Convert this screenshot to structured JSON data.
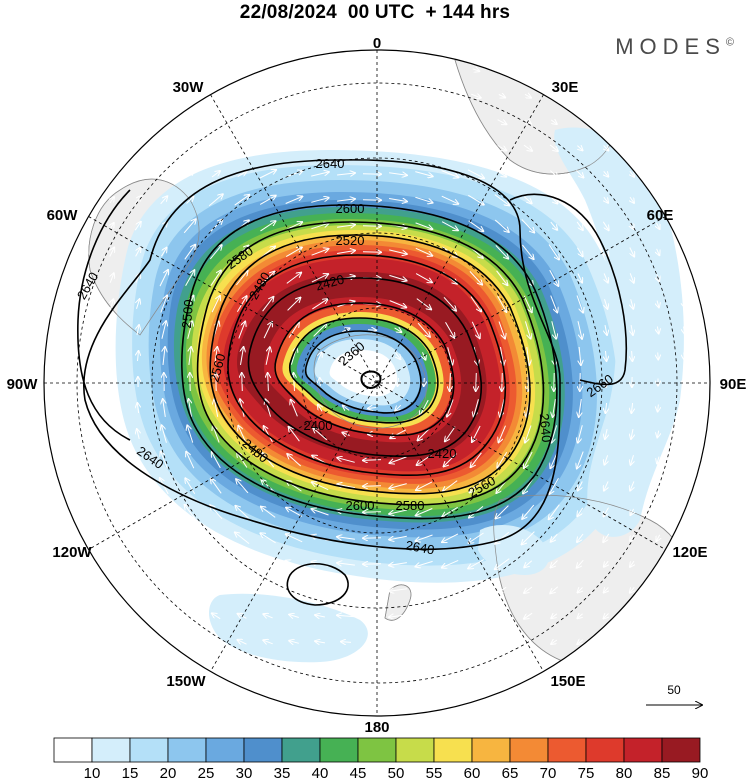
{
  "title": "22/08/2024  00 UTC  + 144 hrs",
  "brand": "MODES",
  "brand_mark": "©",
  "longitude_labels": [
    "0",
    "30E",
    "60E",
    "90E",
    "120E",
    "150E",
    "180",
    "150W",
    "120W",
    "90W",
    "60W",
    "30W"
  ],
  "contour_labels": [
    "2640",
    "2640",
    "2640",
    "2640",
    "2600",
    "2600",
    "2580",
    "2580",
    "2560",
    "2560",
    "2520",
    "2500",
    "2480",
    "2480",
    "2420",
    "2420",
    "2400",
    "2360",
    "2660",
    "2640"
  ],
  "colorbar": {
    "ticks": [
      "10",
      "15",
      "20",
      "25",
      "30",
      "35",
      "40",
      "45",
      "50",
      "55",
      "60",
      "65",
      "70",
      "75",
      "80",
      "85",
      "90"
    ],
    "colors": [
      "#ffffff",
      "#d4eefb",
      "#b4e0f8",
      "#8dc6ee",
      "#6aa9e0",
      "#4f8fcc",
      "#41a08d",
      "#46b154",
      "#7ec442",
      "#c7dc4a",
      "#f7e04f",
      "#f7b540",
      "#f38a35",
      "#ec5a30",
      "#de3a2c",
      "#c4222a",
      "#981a22"
    ]
  },
  "reference_vector": "50",
  "colors": {
    "land": "#eeeeee",
    "coast": "#9a9a9a",
    "contour": "#000000",
    "wind_arrow": "#ffffff"
  }
}
